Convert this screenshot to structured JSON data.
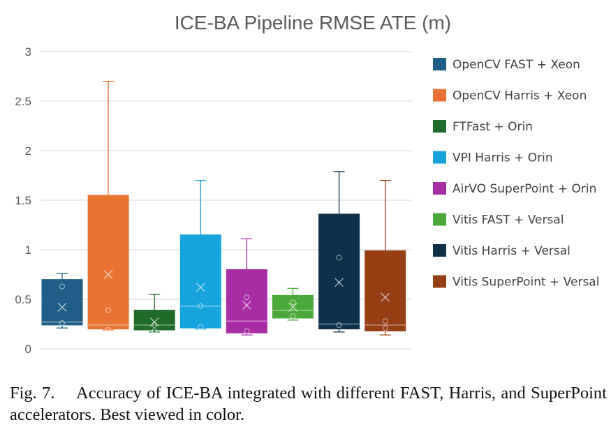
{
  "chart_data": {
    "type": "box",
    "title": "ICE-BA Pipeline RMSE ATE (m)",
    "xlabel": "",
    "ylabel": "",
    "ylim": [
      0,
      3
    ],
    "yticks": [
      0,
      0.5,
      1,
      1.5,
      2,
      2.5,
      3
    ],
    "ytick_labels": [
      "0",
      "0.5",
      "1",
      "1.5",
      "2",
      "2.5",
      "3"
    ],
    "grid": true,
    "legend_position": "right",
    "series": [
      {
        "name": "OpenCV FAST + Xeon",
        "color": "#1f5f87",
        "whisker_low": 0.21,
        "q1": 0.24,
        "median": 0.27,
        "q3": 0.7,
        "whisker_high": 0.76,
        "mean": 0.42,
        "points": [
          0.26,
          0.63
        ]
      },
      {
        "name": "OpenCV Harris + Xeon",
        "color": "#e87332",
        "whisker_low": 0.19,
        "q1": 0.2,
        "median": 0.24,
        "q3": 1.55,
        "whisker_high": 2.7,
        "mean": 0.75,
        "points": [
          0.19,
          0.39
        ]
      },
      {
        "name": "FTFast + Orin",
        "color": "#1e6b2a",
        "whisker_low": 0.17,
        "q1": 0.19,
        "median": 0.24,
        "q3": 0.39,
        "whisker_high": 0.55,
        "mean": 0.27,
        "points": [
          0.18,
          0.24
        ]
      },
      {
        "name": "VPI Harris + Orin",
        "color": "#17a4de",
        "whisker_low": 0.2,
        "q1": 0.21,
        "median": 0.43,
        "q3": 1.15,
        "whisker_high": 1.7,
        "mean": 0.62,
        "points": [
          0.22,
          0.43
        ]
      },
      {
        "name": "AirVO SuperPoint + Orin",
        "color": "#a82ca4",
        "whisker_low": 0.14,
        "q1": 0.16,
        "median": 0.28,
        "q3": 0.8,
        "whisker_high": 1.11,
        "mean": 0.44,
        "points": [
          0.18,
          0.52
        ]
      },
      {
        "name": "Vitis FAST + Versal",
        "color": "#4ba93a",
        "whisker_low": 0.29,
        "q1": 0.31,
        "median": 0.39,
        "q3": 0.54,
        "whisker_high": 0.61,
        "mean": 0.42,
        "points": [
          0.33,
          0.47
        ]
      },
      {
        "name": "Vitis Harris + Versal",
        "color": "#0f3049",
        "whisker_low": 0.17,
        "q1": 0.2,
        "median": 0.25,
        "q3": 1.36,
        "whisker_high": 1.79,
        "mean": 0.67,
        "points": [
          0.24,
          0.92
        ]
      },
      {
        "name": "Vitis SuperPoint + Versal",
        "color": "#973f14",
        "whisker_low": 0.14,
        "q1": 0.18,
        "median": 0.24,
        "q3": 0.99,
        "whisker_high": 1.7,
        "mean": 0.52,
        "points": [
          0.21,
          0.28
        ]
      }
    ]
  },
  "caption": "Fig. 7.  Accuracy of ICE-BA integrated with different FAST, Harris, and SuperPoint accelerators. Best viewed in color."
}
